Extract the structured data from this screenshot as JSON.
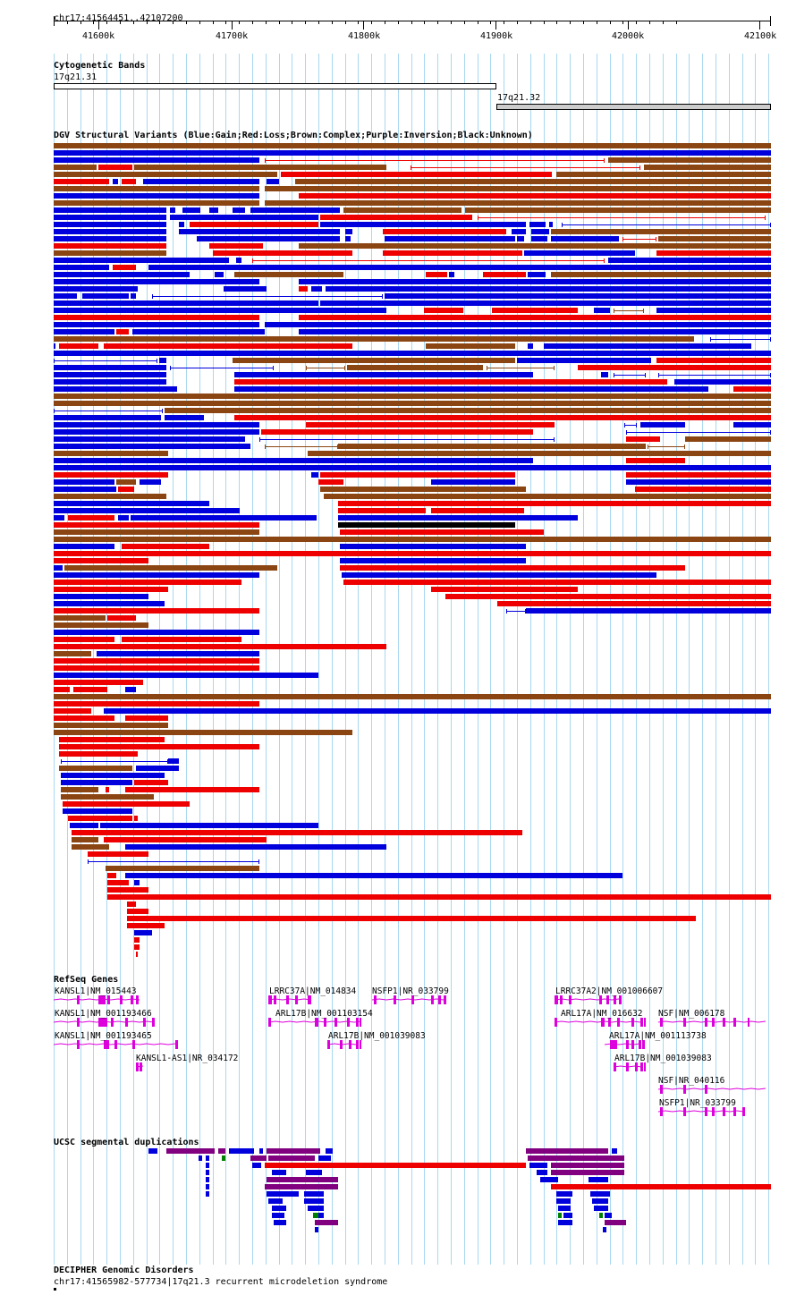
{
  "coordinate_readout": "chr17:41564451..42107200",
  "ruler": {
    "ticks": [
      "41600k",
      "41700k",
      "41800k",
      "41900k",
      "42000k",
      "42100k"
    ]
  },
  "cytoband": {
    "title": "Cytogenetic Bands",
    "bands": [
      {
        "name": "17q21.31",
        "fill": "#ffffff"
      },
      {
        "name": "17q21.32",
        "fill": "#cccccc"
      }
    ]
  },
  "dgv": {
    "title": "DGV Structural Variants (Blue:Gain;Red:Loss;Brown:Complex;Purple:Inversion;Black:Unknown)"
  },
  "refseq": {
    "title": "RefSeq Genes",
    "genes": [
      "KANSL1|NM_015443",
      "KANSL1|NM_001193466",
      "KANSL1|NM_001193465",
      "KANSL1-AS1|NR_034172",
      "LRRC37A|NM_014834",
      "ARL17B|NM_001103154",
      "ARL17B|NM_001039083",
      "NSFP1|NR_033799",
      "LRRC37A2|NM_001006607",
      "ARL17A|NM_016632",
      "NSF|NM_006178",
      "ARL17A|NM_001113738",
      "ARL17B|NM_001039083",
      "NSF|NR_040116",
      "NSFP1|NR_033799"
    ]
  },
  "segdup": {
    "title": "UCSC segmental duplications"
  },
  "decipher": {
    "title": "DECIPHER Genomic Disorders",
    "entry": "chr17:41565982-577734|17q21.3 recurrent microdeletion syndrome"
  },
  "colors": {
    "gain": "#0000dd",
    "loss": "#ee0000",
    "complex": "#8b4513",
    "inversion": "#800080",
    "unknown": "#000000",
    "gene": "#dd00dd",
    "gridline": "#a8d8f0",
    "segdup_green": "#008000"
  }
}
